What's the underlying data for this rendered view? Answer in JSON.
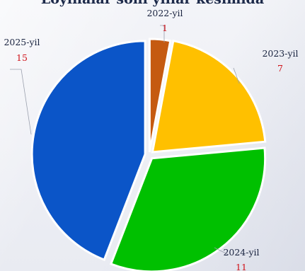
{
  "chart_data": {
    "type": "pie",
    "title": "Loyihalar soni yillar kesimida",
    "categories": [
      "2022-yil",
      "2023-yil",
      "2024-yil",
      "2025-yil"
    ],
    "values": [
      1,
      7,
      11,
      15
    ],
    "colors": [
      "#c55a11",
      "#ffc000",
      "#00c000",
      "#0b55c8"
    ],
    "legend": "none",
    "data_labels": "category and value, outside with leader lines"
  }
}
